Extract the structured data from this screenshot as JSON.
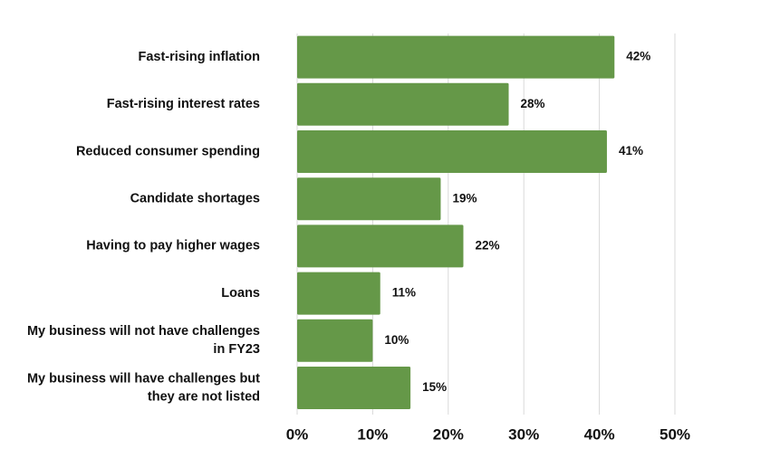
{
  "chart_data": {
    "type": "bar",
    "orientation": "horizontal",
    "title": "",
    "xlabel": "",
    "ylabel": "",
    "xlim": [
      0,
      50
    ],
    "grid": true,
    "legend": "none",
    "bar_color": "#659848",
    "categories": [
      "Fast-rising inflation",
      "Fast-rising interest rates",
      "Reduced consumer spending",
      "Candidate shortages",
      "Having to pay higher wages",
      "Loans",
      "My business will not have challenges in FY23",
      "My business will have challenges but they are not listed"
    ],
    "category_lines": [
      [
        "Fast-rising inflation"
      ],
      [
        "Fast-rising interest rates"
      ],
      [
        "Reduced consumer spending"
      ],
      [
        "Candidate shortages"
      ],
      [
        "Having to pay higher wages"
      ],
      [
        "Loans"
      ],
      [
        "My business will not have challenges",
        "in FY23"
      ],
      [
        "My business will have challenges but",
        "they are not listed"
      ]
    ],
    "values": [
      42,
      28,
      41,
      19,
      22,
      11,
      10,
      15
    ],
    "value_labels": [
      "42%",
      "28%",
      "41%",
      "19%",
      "22%",
      "11%",
      "10%",
      "15%"
    ],
    "ticks": [
      0,
      10,
      20,
      30,
      40,
      50
    ],
    "tick_labels": [
      "0%",
      "10%",
      "20%",
      "30%",
      "40%",
      "50%"
    ]
  }
}
